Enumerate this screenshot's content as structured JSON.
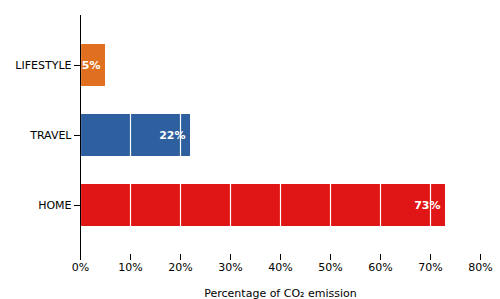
{
  "chart_data": {
    "type": "bar",
    "orientation": "horizontal",
    "categories": [
      "HOME",
      "TRAVEL",
      "LIFESTYLE"
    ],
    "values": [
      73,
      22,
      5
    ],
    "value_labels": [
      "73%",
      "22%",
      "5%"
    ],
    "data_labels": true,
    "colors": [
      "#e01515",
      "#2e5f9e",
      "#e07020"
    ],
    "xlabel": "Percentage of CO₂ emission",
    "xlim": [
      0,
      80
    ],
    "xticks": [
      {
        "value": 0,
        "label": "0%"
      },
      {
        "value": 10,
        "label": "10%"
      },
      {
        "value": 20,
        "label": "20%"
      },
      {
        "value": 30,
        "label": "30%"
      },
      {
        "value": 40,
        "label": "40%"
      },
      {
        "value": 50,
        "label": "50%"
      },
      {
        "value": 60,
        "label": "60%"
      },
      {
        "value": 70,
        "label": "70%"
      },
      {
        "value": 80,
        "label": "80%"
      }
    ],
    "grid": true
  }
}
